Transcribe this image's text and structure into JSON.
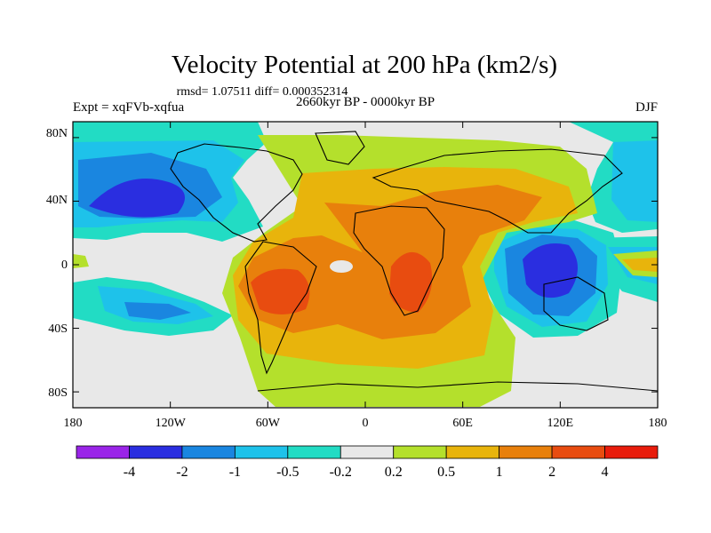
{
  "title": "Velocity Potential at 200 hPa (km2/s)",
  "stats_line": "rmsd= 1.07511 diff= 0.000352314",
  "subtitle_left": "Expt = xqFVb-xqfua",
  "subtitle_center": "2660kyr BP - 0000kyr BP",
  "subtitle_right": "DJF",
  "lat_labels": [
    "80N",
    "40N",
    "0",
    "40S",
    "80S"
  ],
  "lon_labels": [
    "180",
    "120W",
    "60W",
    "0",
    "60E",
    "120E",
    "180"
  ],
  "colorbar": {
    "labels": [
      "-4",
      "-2",
      "-1",
      "-0.5",
      "-0.2",
      "0.2",
      "0.5",
      "1",
      "2",
      "4"
    ],
    "colors": [
      "#9a24e8",
      "#2a2ee0",
      "#1a86e0",
      "#1ec2ea",
      "#22dcc4",
      "#e8e8e8",
      "#b4e02c",
      "#e8b40c",
      "#e8800c",
      "#e84c10",
      "#e81c0c"
    ]
  },
  "chart_data": {
    "type": "map",
    "projection": "cylindrical-equidistant",
    "lon_range": [
      -180,
      180
    ],
    "lat_range": [
      -90,
      90
    ],
    "levels": [
      -4,
      -2,
      -1,
      -0.5,
      -0.2,
      0.2,
      0.5,
      1,
      2,
      4
    ],
    "features": [
      {
        "name": "north-pacific-negative",
        "center": [
          -150,
          35
        ],
        "value_level": "-2"
      },
      {
        "name": "maritime-continent-negative",
        "center": [
          125,
          -5
        ],
        "value_level": "-2"
      },
      {
        "name": "south-america-positive",
        "center": [
          -55,
          -10
        ],
        "value_level": "2"
      },
      {
        "name": "africa-positive",
        "center": [
          25,
          -10
        ],
        "value_level": "2"
      },
      {
        "name": "north-africa-positive",
        "center": [
          30,
          30
        ],
        "value_level": "1"
      }
    ]
  }
}
